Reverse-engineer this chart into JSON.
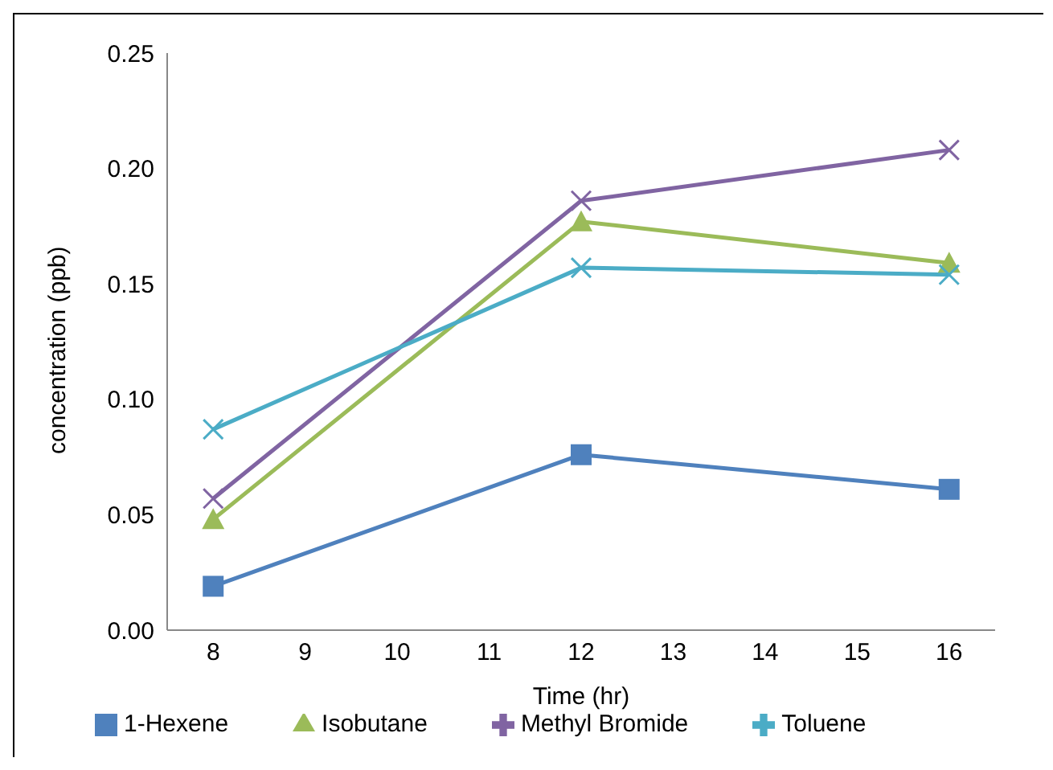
{
  "chart_data": {
    "type": "line",
    "xlabel": "Time (hr)",
    "ylabel": "concentration (ppb)",
    "x": [
      8,
      12,
      16
    ],
    "series": [
      {
        "name": "1-Hexene",
        "color": "#4f81bd",
        "marker": "square",
        "values": [
          0.019,
          0.076,
          0.061
        ]
      },
      {
        "name": "Isobutane",
        "color": "#9bbb59",
        "marker": "triangle",
        "values": [
          0.048,
          0.177,
          0.159
        ]
      },
      {
        "name": "Methyl Bromide",
        "color": "#8064a2",
        "marker": "cross",
        "values": [
          0.057,
          0.186,
          0.208
        ]
      },
      {
        "name": "Toluene",
        "color": "#4bacc6",
        "marker": "cross",
        "values": [
          0.087,
          0.157,
          0.154
        ]
      }
    ],
    "xlim": [
      7.5,
      16.5
    ],
    "xticks": [
      8,
      9,
      10,
      11,
      12,
      13,
      14,
      15,
      16
    ],
    "ylim": [
      0,
      0.25
    ],
    "yticks": [
      {
        "value": 0,
        "label": "0.00"
      },
      0.05,
      {
        "value": 0.1,
        "label": "0.10"
      },
      0.15,
      {
        "value": 0.2,
        "label": "0.20"
      },
      0.25
    ],
    "grid": false,
    "legend": "bottom",
    "line_style": "solid"
  }
}
